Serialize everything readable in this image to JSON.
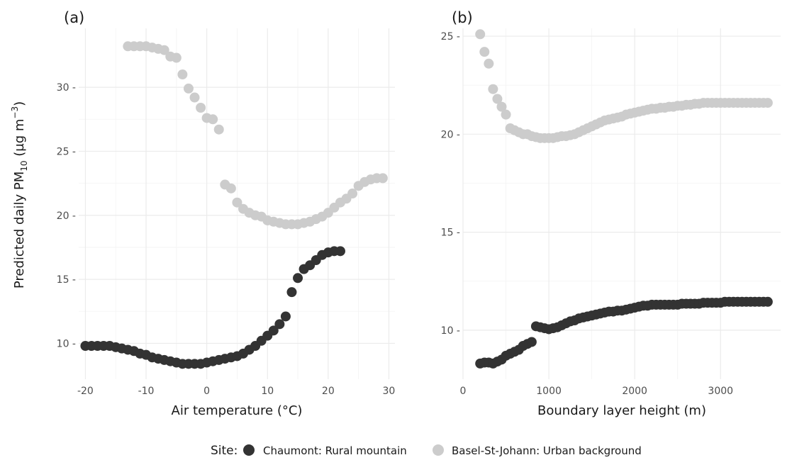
{
  "figure": {
    "ylabel_main": "Predicted daily PM",
    "ylabel_sub": "10",
    "ylabel_unit_pre": " (µg m",
    "ylabel_unit_sup": "−3",
    "ylabel_unit_post": ")"
  },
  "legend": {
    "title": "Site:",
    "items": [
      {
        "label": "Chaumont: Rural mountain",
        "color": "#333333"
      },
      {
        "label": "Basel-St-Johann: Urban background",
        "color": "#cccccc"
      }
    ]
  },
  "colors": {
    "dark": "#333333",
    "light": "#cccccc",
    "grid": "#ebebeb",
    "axis_text": "#4d4d4d"
  },
  "chart_data": [
    {
      "type": "scatter",
      "panel_label": "(a)",
      "xlabel": "Air temperature (°C)",
      "ylabel": "Predicted daily PM10 (µg m-3)",
      "xlim": [
        -21.1,
        31.0
      ],
      "ylim": [
        7.2,
        34.6
      ],
      "xticks": [
        -20,
        -10,
        0,
        10,
        20,
        30
      ],
      "yticks": [
        10,
        15,
        20,
        25,
        30
      ],
      "xtick_labels": [
        "-20",
        "-10",
        "0",
        "10",
        "20",
        "30"
      ],
      "ytick_labels": [
        "10 -",
        "15 -",
        "20 -",
        "25 -",
        "30 -"
      ],
      "grid": true,
      "series": [
        {
          "name": "Chaumont: Rural mountain",
          "color": "#333333",
          "x": [
            -20,
            -19,
            -18,
            -17,
            -16,
            -15,
            -14,
            -13,
            -12,
            -11,
            -10,
            -9,
            -8,
            -7,
            -6,
            -5,
            -4,
            -3,
            -2,
            -1,
            0,
            1,
            2,
            3,
            4,
            5,
            6,
            7,
            8,
            9,
            10,
            11,
            12,
            13,
            14,
            15,
            16,
            17,
            18,
            19,
            20,
            21,
            22
          ],
          "y": [
            9.8,
            9.8,
            9.8,
            9.8,
            9.8,
            9.7,
            9.6,
            9.5,
            9.4,
            9.2,
            9.1,
            8.9,
            8.8,
            8.7,
            8.6,
            8.5,
            8.4,
            8.4,
            8.4,
            8.4,
            8.5,
            8.6,
            8.7,
            8.8,
            8.9,
            9.0,
            9.2,
            9.5,
            9.8,
            10.2,
            10.6,
            11.0,
            11.5,
            12.1,
            14.0,
            15.1,
            15.8,
            16.1,
            16.5,
            16.9,
            17.1,
            17.2,
            17.2
          ]
        },
        {
          "name": "Basel-St-Johann: Urban background",
          "color": "#cccccc",
          "x": [
            -13,
            -12,
            -11,
            -10,
            -9,
            -8,
            -7,
            -6,
            -5,
            -4,
            -3,
            -2,
            -1,
            0,
            1,
            2,
            3,
            4,
            5,
            6,
            7,
            8,
            9,
            10,
            11,
            12,
            13,
            14,
            15,
            16,
            17,
            18,
            19,
            20,
            21,
            22,
            23,
            24,
            25,
            26,
            27,
            28,
            29
          ],
          "y": [
            33.2,
            33.2,
            33.2,
            33.2,
            33.1,
            33.0,
            32.9,
            32.4,
            32.3,
            31.0,
            29.9,
            29.2,
            28.4,
            27.6,
            27.5,
            26.7,
            22.4,
            22.1,
            21.0,
            20.5,
            20.2,
            20.0,
            19.9,
            19.6,
            19.5,
            19.4,
            19.3,
            19.3,
            19.3,
            19.4,
            19.5,
            19.7,
            19.9,
            20.2,
            20.6,
            21.0,
            21.3,
            21.7,
            22.3,
            22.6,
            22.8,
            22.9,
            22.9
          ]
        }
      ]
    },
    {
      "type": "scatter",
      "panel_label": "(b)",
      "xlabel": "Boundary layer height (m)",
      "ylabel": "",
      "xlim": [
        0,
        3700
      ],
      "ylim": [
        7.5,
        25.4
      ],
      "xticks": [
        0,
        1000,
        2000,
        3000
      ],
      "yticks": [
        10,
        15,
        20,
        25
      ],
      "xtick_labels": [
        "0",
        "1000",
        "2000",
        "3000"
      ],
      "ytick_labels": [
        "10 -",
        "15 -",
        "20 -",
        "25 -"
      ],
      "grid": true,
      "series": [
        {
          "name": "Chaumont: Rural mountain",
          "color": "#333333",
          "x": [
            200,
            250,
            300,
            350,
            400,
            450,
            500,
            550,
            600,
            650,
            700,
            750,
            800,
            850,
            900,
            950,
            1000,
            1050,
            1100,
            1150,
            1200,
            1250,
            1300,
            1350,
            1400,
            1450,
            1500,
            1550,
            1600,
            1650,
            1700,
            1750,
            1800,
            1850,
            1900,
            1950,
            2000,
            2050,
            2100,
            2150,
            2200,
            2250,
            2300,
            2350,
            2400,
            2450,
            2500,
            2550,
            2600,
            2650,
            2700,
            2750,
            2800,
            2850,
            2900,
            2950,
            3000,
            3050,
            3100,
            3150,
            3200,
            3250,
            3300,
            3350,
            3400,
            3450,
            3500,
            3550
          ],
          "y": [
            8.3,
            8.35,
            8.35,
            8.3,
            8.4,
            8.5,
            8.7,
            8.8,
            8.9,
            9.0,
            9.2,
            9.3,
            9.4,
            10.2,
            10.15,
            10.1,
            10.05,
            10.1,
            10.15,
            10.25,
            10.35,
            10.45,
            10.5,
            10.6,
            10.65,
            10.7,
            10.75,
            10.8,
            10.85,
            10.9,
            10.95,
            10.95,
            11.0,
            11.0,
            11.05,
            11.1,
            11.15,
            11.2,
            11.25,
            11.25,
            11.3,
            11.3,
            11.3,
            11.3,
            11.3,
            11.3,
            11.3,
            11.35,
            11.35,
            11.35,
            11.35,
            11.35,
            11.4,
            11.4,
            11.4,
            11.4,
            11.4,
            11.45,
            11.45,
            11.45,
            11.45,
            11.45,
            11.45,
            11.45,
            11.45,
            11.45,
            11.45,
            11.45
          ]
        },
        {
          "name": "Basel-St-Johann: Urban background",
          "color": "#cccccc",
          "x": [
            200,
            250,
            300,
            350,
            400,
            450,
            500,
            550,
            600,
            650,
            700,
            750,
            800,
            850,
            900,
            950,
            1000,
            1050,
            1100,
            1150,
            1200,
            1250,
            1300,
            1350,
            1400,
            1450,
            1500,
            1550,
            1600,
            1650,
            1700,
            1750,
            1800,
            1850,
            1900,
            1950,
            2000,
            2050,
            2100,
            2150,
            2200,
            2250,
            2300,
            2350,
            2400,
            2450,
            2500,
            2550,
            2600,
            2650,
            2700,
            2750,
            2800,
            2850,
            2900,
            2950,
            3000,
            3050,
            3100,
            3150,
            3200,
            3250,
            3300,
            3350,
            3400,
            3450,
            3500,
            3550
          ],
          "y": [
            25.1,
            24.2,
            23.6,
            22.3,
            21.8,
            21.4,
            21.0,
            20.3,
            20.2,
            20.1,
            20.0,
            20.0,
            19.9,
            19.85,
            19.8,
            19.8,
            19.8,
            19.8,
            19.85,
            19.9,
            19.9,
            19.95,
            20.0,
            20.1,
            20.2,
            20.3,
            20.4,
            20.5,
            20.6,
            20.7,
            20.75,
            20.8,
            20.85,
            20.9,
            21.0,
            21.05,
            21.1,
            21.15,
            21.2,
            21.25,
            21.3,
            21.3,
            21.35,
            21.35,
            21.4,
            21.4,
            21.45,
            21.45,
            21.5,
            21.5,
            21.55,
            21.55,
            21.6,
            21.6,
            21.6,
            21.6,
            21.6,
            21.6,
            21.6,
            21.6,
            21.6,
            21.6,
            21.6,
            21.6,
            21.6,
            21.6,
            21.6,
            21.6
          ]
        }
      ]
    }
  ]
}
